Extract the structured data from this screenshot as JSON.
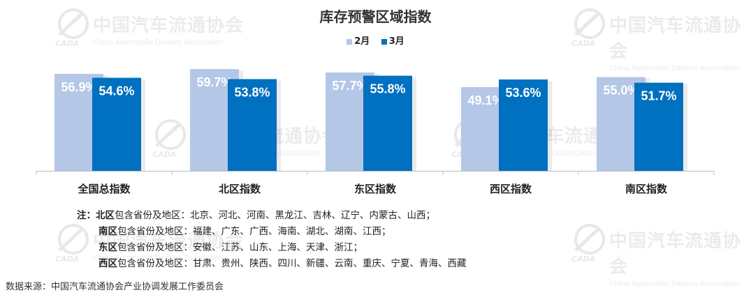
{
  "chart_data": {
    "type": "bar",
    "title": "库存预警区域指数",
    "categories": [
      "全国总指数",
      "北区指数",
      "东区指数",
      "西区指数",
      "南区指数"
    ],
    "series": [
      {
        "name": "2月",
        "values": [
          56.9,
          59.7,
          57.7,
          49.1,
          55.0
        ],
        "labels": [
          "56.9%",
          "59.7%",
          "57.7%",
          "49.1%",
          "55.0%"
        ],
        "color": "#b4c7e7"
      },
      {
        "name": "3月",
        "values": [
          54.6,
          53.8,
          55.8,
          53.6,
          51.7
        ],
        "labels": [
          "54.6%",
          "53.8%",
          "55.8%",
          "53.6%",
          "51.7%"
        ],
        "color": "#0070c0"
      }
    ],
    "ylim": [
      0,
      60
    ],
    "legend_position": "top-center",
    "grid": false
  },
  "watermark": {
    "cn": "中国汽车流通协会",
    "en": "China Automobile Dealers Association",
    "logo_text": "CADA"
  },
  "notes": {
    "prefix": "注：",
    "rows": [
      {
        "region": "北区",
        "text": "包含省份及地区：北京、河北、河南、黑龙江、吉林、辽宁、内蒙古、山西；"
      },
      {
        "region": "南区",
        "text": "包含省份及地区：福建、广东、广西、海南、湖北、湖南、江西；"
      },
      {
        "region": "东区",
        "text": "包含省份及地区：安徽、江苏、山东、上海、天津、浙江；"
      },
      {
        "region": "西区",
        "text": "包含省份及地区：甘肃、贵州、陕西、四川、新疆、云南、重庆、宁夏、青海、西藏"
      }
    ]
  },
  "source": "数据来源：中国汽车流通协会产业协调发展工作委员会",
  "colors": {
    "feb": "#b4c7e7",
    "mar": "#0070c0",
    "axis": "#bfbfbf"
  }
}
